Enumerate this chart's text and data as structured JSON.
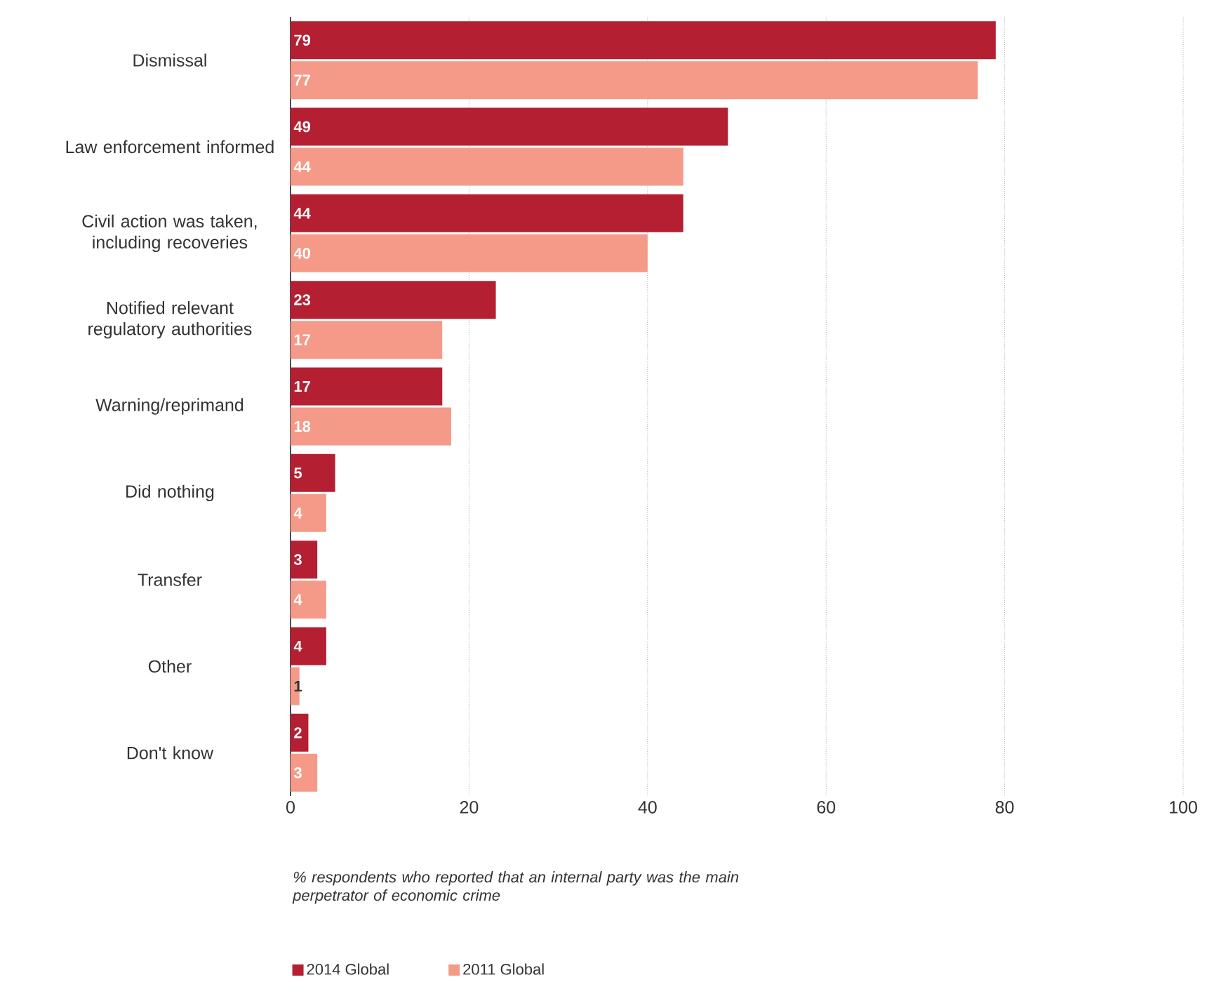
{
  "chart_data": {
    "type": "bar",
    "orientation": "horizontal",
    "categories": [
      "Dismissal",
      "Law enforcement informed",
      "Civil action was taken, including recoveries",
      "Notified relevant regulatory authorities",
      "Warning/reprimand",
      "Did nothing",
      "Transfer",
      "Other",
      "Don't know"
    ],
    "series": [
      {
        "name": "2014 Global",
        "color": "#b51f32",
        "values": [
          79,
          49,
          44,
          23,
          17,
          5,
          3,
          4,
          2
        ]
      },
      {
        "name": "2011 Global",
        "color": "#f59a88",
        "values": [
          77,
          44,
          40,
          17,
          18,
          4,
          4,
          1,
          3
        ]
      }
    ],
    "xlim": [
      0,
      100
    ],
    "xticks": [
      0,
      20,
      40,
      60,
      80,
      100
    ],
    "grid": "x",
    "data_labels": true,
    "legend": "bottom left",
    "annotations": [
      "% respondents who reported that an internal party was the main perpetrator of economic crime"
    ]
  }
}
